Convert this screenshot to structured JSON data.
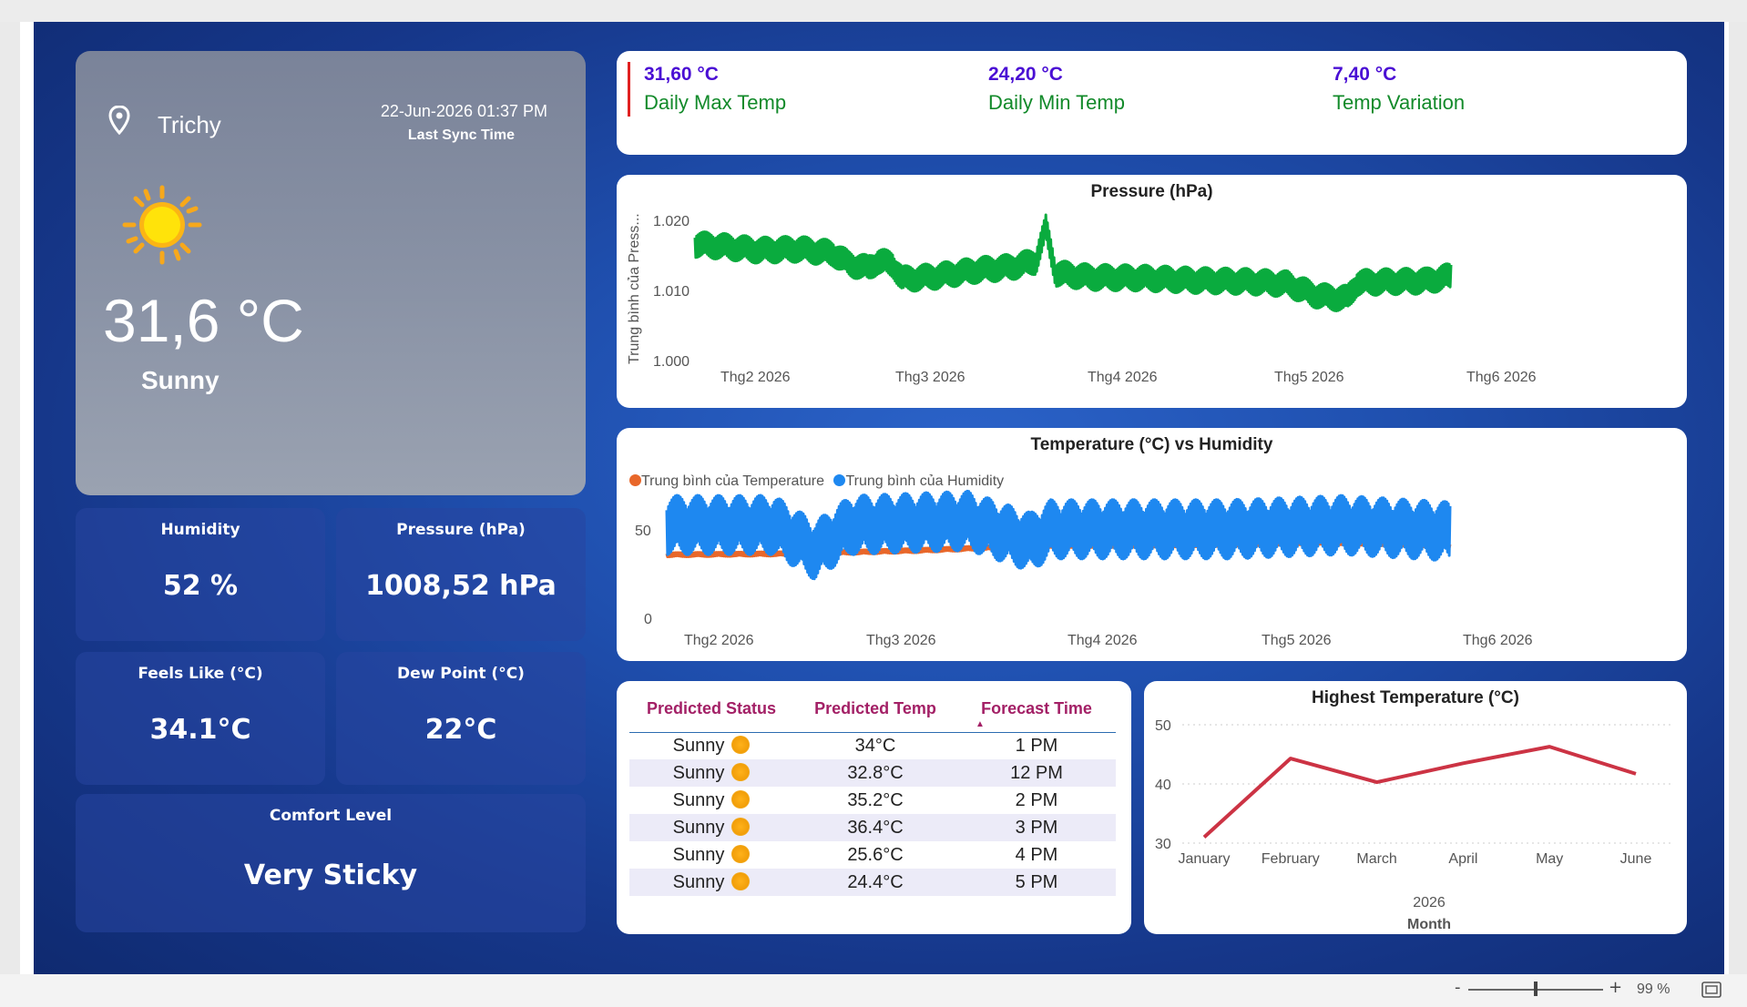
{
  "location": {
    "city": "Trichy",
    "sync_datetime": "22-Jun-2026 01:37 PM",
    "sync_label": "Last Sync Time"
  },
  "current": {
    "temperature": "31,6 °C",
    "condition": "Sunny",
    "icon": "sun-icon"
  },
  "tiles": {
    "humidity": {
      "label": "Humidity",
      "value": "52 %"
    },
    "pressure": {
      "label": "Pressure (hPa)",
      "value": "1008,52 hPa"
    },
    "feels_like": {
      "label": "Feels Like (°C)",
      "value": "34.1°C"
    },
    "dew_point": {
      "label": "Dew Point (°C)",
      "value": "22°C"
    },
    "comfort": {
      "label": "Comfort Level",
      "value": "Very Sticky"
    }
  },
  "kpis": [
    {
      "value": "31,60 °C",
      "label": "Daily Max Temp"
    },
    {
      "value": "24,20 °C",
      "label": "Daily Min Temp"
    },
    {
      "value": "7,40 °C",
      "label": "Temp Variation"
    }
  ],
  "colors": {
    "kpi_value": "#4a0fd4",
    "kpi_label": "#128a2a",
    "pressure_line": "#0aab3e",
    "temperature_line": "#e8672a",
    "humidity_line": "#1e88f0",
    "highest_temp_line": "#cc3344",
    "table_header": "#a32066"
  },
  "forecast": {
    "headers": [
      "Predicted Status",
      "Predicted Temp",
      "Forecast Time"
    ],
    "sort_indicator": "▲",
    "rows": [
      {
        "status": "Sunny",
        "temp": "34°C",
        "time": "1 PM"
      },
      {
        "status": "Sunny",
        "temp": "32.8°C",
        "time": "12 PM"
      },
      {
        "status": "Sunny",
        "temp": "35.2°C",
        "time": "2 PM"
      },
      {
        "status": "Sunny",
        "temp": "36.4°C",
        "time": "3 PM"
      },
      {
        "status": "Sunny",
        "temp": "25.6°C",
        "time": "4 PM"
      },
      {
        "status": "Sunny",
        "temp": "24.4°C",
        "time": "5 PM"
      }
    ]
  },
  "statusbar": {
    "zoom": "99 %",
    "minus": "-",
    "plus": "+",
    "zoom_level": 0.5
  },
  "chart_data": [
    {
      "type": "line",
      "title": "Pressure (hPa)",
      "ylabel": "Trung bình của Press...",
      "xlabel": "",
      "x_ticks": [
        "Thg2 2026",
        "Thg3 2026",
        "Thg4 2026",
        "Thg5 2026",
        "Thg6 2026"
      ],
      "y_ticks": [
        "1.000",
        "1.010",
        "1.020"
      ],
      "ylim": [
        1000,
        1020
      ],
      "x_range": [
        "2026-01-20",
        "2026-06-22"
      ],
      "series": [
        {
          "name": "",
          "color": "#0aab3e",
          "noise": 2.2,
          "points": [
            [
              "2026-01-20",
              1014.8
            ],
            [
              "2026-01-25",
              1014.5
            ],
            [
              "2026-02-02",
              1013.8
            ],
            [
              "2026-02-10",
              1014.0
            ],
            [
              "2026-02-17",
              1013.3
            ],
            [
              "2026-02-20",
              1011.6
            ],
            [
              "2026-02-24",
              1010.8
            ],
            [
              "2026-02-26",
              1012.0
            ],
            [
              "2026-03-01",
              1011.5
            ],
            [
              "2026-03-03",
              1009.0
            ],
            [
              "2026-03-10",
              1009.5
            ],
            [
              "2026-03-18",
              1010.5
            ],
            [
              "2026-03-25",
              1011.0
            ],
            [
              "2026-03-30",
              1012.0
            ],
            [
              "2026-04-01",
              1017.5
            ],
            [
              "2026-04-03",
              1010.0
            ],
            [
              "2026-04-10",
              1009.3
            ],
            [
              "2026-04-20",
              1009.2
            ],
            [
              "2026-05-01",
              1008.8
            ],
            [
              "2026-05-12",
              1008.6
            ],
            [
              "2026-05-20",
              1008.2
            ],
            [
              "2026-05-25",
              1006.5
            ],
            [
              "2026-05-28",
              1006.0
            ],
            [
              "2026-06-01",
              1005.8
            ],
            [
              "2026-06-03",
              1008.4
            ],
            [
              "2026-06-10",
              1008.6
            ],
            [
              "2026-06-17",
              1008.7
            ],
            [
              "2026-06-22",
              1009.5
            ]
          ]
        }
      ]
    },
    {
      "type": "line",
      "title": "Temperature (°C) vs Humidity",
      "x_ticks": [
        "Thg2 2026",
        "Thg3 2026",
        "Thg4 2026",
        "Thg5 2026",
        "Thg6 2026"
      ],
      "y_ticks": [
        "0",
        "50"
      ],
      "ylim": [
        0,
        60
      ],
      "x_range": [
        "2026-01-20",
        "2026-06-22"
      ],
      "legend_position": "top-left",
      "series": [
        {
          "name": "Trung bình của Temperature",
          "color": "#e8672a",
          "noise": 1.0,
          "points": [
            [
              "2026-01-20",
              26
            ],
            [
              "2026-02-15",
              26.5
            ],
            [
              "2026-03-10",
              28
            ],
            [
              "2026-04-01",
              30
            ],
            [
              "2026-04-20",
              30
            ],
            [
              "2026-05-10",
              30.5
            ],
            [
              "2026-05-28",
              31.5
            ],
            [
              "2026-06-22",
              30
            ]
          ]
        },
        {
          "name": "Trung bình của Humidity",
          "color": "#1e88f0",
          "noise": 14,
          "points": [
            [
              "2026-01-20",
              40
            ],
            [
              "2026-02-10",
              40
            ],
            [
              "2026-02-18",
              28
            ],
            [
              "2026-02-25",
              40
            ],
            [
              "2026-03-20",
              42
            ],
            [
              "2026-04-01",
              32
            ],
            [
              "2026-04-05",
              38
            ],
            [
              "2026-05-10",
              38
            ],
            [
              "2026-06-01",
              40
            ],
            [
              "2026-06-22",
              37
            ]
          ]
        }
      ]
    },
    {
      "type": "line",
      "title": "Highest Temperature (°C)",
      "xlabel": "Month",
      "xlabel_sub": "2026",
      "categories": [
        "January",
        "February",
        "March",
        "April",
        "May",
        "June"
      ],
      "y_ticks": [
        "30",
        "40",
        "50"
      ],
      "ylim": [
        30,
        50
      ],
      "grid": true,
      "series": [
        {
          "name": "",
          "color": "#cc3344",
          "values": [
            31.0,
            44.3,
            40.3,
            43.5,
            46.3,
            41.7
          ]
        }
      ]
    }
  ]
}
